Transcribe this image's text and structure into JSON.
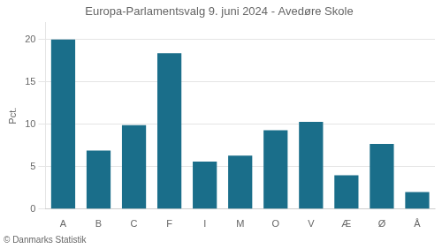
{
  "chart_data": {
    "type": "bar",
    "title": "Europa-Parlamentsvalg 9. juni 2024 - Avedøre Skole",
    "categories": [
      "A",
      "B",
      "C",
      "F",
      "I",
      "M",
      "O",
      "V",
      "Æ",
      "Ø",
      "Å"
    ],
    "values": [
      20.0,
      6.9,
      9.9,
      18.4,
      5.6,
      6.3,
      9.3,
      10.3,
      4.0,
      7.7,
      2.0
    ],
    "color": "#1a6e8a",
    "ylabel": "Pct.",
    "ylim": [
      0,
      22
    ],
    "yticks": [
      0,
      5,
      10,
      15,
      20
    ],
    "grid": true,
    "annotations": [
      "© Danmarks Statistik"
    ]
  }
}
